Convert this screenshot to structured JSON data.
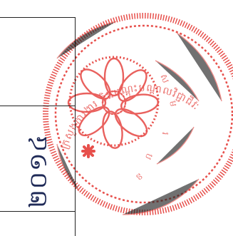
{
  "document": {
    "year_text": "២០១៤"
  },
  "seal": {
    "inscription": "ក្រសួងការងារ និងបណ្តុះបណ្តាលវិជ្ជាជីវៈ",
    "color": "#e3342f"
  }
}
